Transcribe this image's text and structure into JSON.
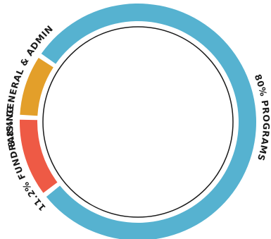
{
  "chart_data": {
    "type": "pie",
    "title": "",
    "series": [
      {
        "categories": [
          "PROGRAMS",
          "FUNDRAISING",
          "GENERAL & ADMIN"
        ],
        "values": [
          80,
          11.2,
          8.8
        ],
        "labels": [
          "80% PROGRAMS",
          "11.2% FUNDRAISING",
          "8.8% GENERAL & ADMIN"
        ],
        "colors": [
          "#56b2d0",
          "#ee5a45",
          "#e39f2a"
        ]
      }
    ],
    "legend": "none",
    "style": "donut ring with inner outlined circle, labels placed outside the ring"
  }
}
